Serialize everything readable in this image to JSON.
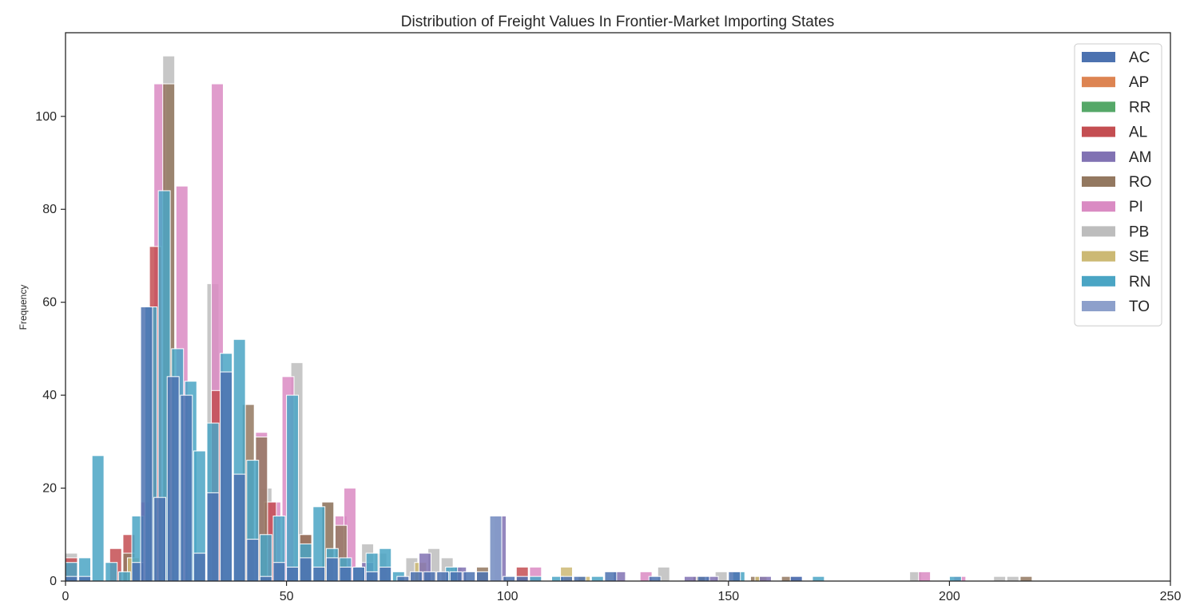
{
  "chart_data": {
    "type": "bar",
    "title": "Distribution of Freight Values In Frontier-Market Importing States",
    "xlabel": "",
    "ylabel": "Frequency",
    "xlim": [
      0,
      250
    ],
    "ylim": [
      0,
      118
    ],
    "x_ticks": [
      0,
      50,
      100,
      150,
      200,
      250
    ],
    "y_ticks": [
      0,
      20,
      40,
      60,
      80,
      100
    ],
    "grid": false,
    "legend_position": "top-right",
    "histogram_bin_width": 2.7,
    "series": [
      {
        "name": "PB",
        "color": "#bdbdbd",
        "bars": [
          [
            0,
            6
          ],
          [
            22,
            113
          ],
          [
            32,
            64
          ],
          [
            44,
            20
          ],
          [
            51,
            47
          ],
          [
            58,
            17
          ],
          [
            67,
            8
          ],
          [
            70,
            6
          ],
          [
            77,
            5
          ],
          [
            82,
            7
          ],
          [
            85,
            5
          ],
          [
            87,
            3
          ],
          [
            134,
            3
          ],
          [
            147,
            2
          ],
          [
            191,
            2
          ],
          [
            210,
            1
          ],
          [
            213,
            1
          ]
        ]
      },
      {
        "name": "PI",
        "color": "#da8bc3",
        "bars": [
          [
            17,
            17
          ],
          [
            20,
            107
          ],
          [
            25,
            85
          ],
          [
            33,
            107
          ],
          [
            43,
            32
          ],
          [
            46,
            17
          ],
          [
            49,
            44
          ],
          [
            61,
            14
          ],
          [
            63,
            20
          ],
          [
            105,
            3
          ],
          [
            130,
            2
          ],
          [
            193,
            2
          ],
          [
            201,
            1
          ]
        ]
      },
      {
        "name": "AL",
        "color": "#c44e52",
        "bars": [
          [
            0,
            5
          ],
          [
            10,
            7
          ],
          [
            13,
            10
          ],
          [
            19,
            72
          ],
          [
            33,
            41
          ],
          [
            45,
            17
          ],
          [
            53,
            10
          ],
          [
            102,
            3
          ]
        ]
      },
      {
        "name": "RO",
        "color": "#937860",
        "bars": [
          [
            13,
            6
          ],
          [
            22,
            107
          ],
          [
            40,
            38
          ],
          [
            43,
            31
          ],
          [
            53,
            10
          ],
          [
            58,
            17
          ],
          [
            61,
            12
          ],
          [
            93,
            3
          ],
          [
            142,
            1
          ],
          [
            155,
            1
          ],
          [
            162,
            1
          ],
          [
            216,
            1
          ]
        ]
      },
      {
        "name": "SE",
        "color": "#ccb974",
        "bars": [
          [
            14,
            5
          ],
          [
            79,
            4
          ],
          [
            112,
            3
          ],
          [
            116,
            1
          ],
          [
            156,
            1
          ]
        ]
      },
      {
        "name": "AM",
        "color": "#8172b3",
        "bars": [
          [
            62,
            3
          ],
          [
            67,
            4
          ],
          [
            80,
            6
          ],
          [
            88,
            3
          ],
          [
            97,
            14
          ],
          [
            124,
            2
          ],
          [
            140,
            1
          ],
          [
            145,
            1
          ],
          [
            157,
            1
          ],
          [
            164,
            1
          ]
        ]
      },
      {
        "name": "RN",
        "color": "#4aa5c4",
        "bars": [
          [
            0,
            4
          ],
          [
            3,
            5
          ],
          [
            6,
            27
          ],
          [
            9,
            4
          ],
          [
            12,
            2
          ],
          [
            15,
            14
          ],
          [
            18,
            59
          ],
          [
            21,
            84
          ],
          [
            24,
            50
          ],
          [
            27,
            43
          ],
          [
            29,
            28
          ],
          [
            32,
            34
          ],
          [
            35,
            49
          ],
          [
            38,
            52
          ],
          [
            41,
            26
          ],
          [
            44,
            10
          ],
          [
            47,
            14
          ],
          [
            50,
            40
          ],
          [
            53,
            8
          ],
          [
            56,
            16
          ],
          [
            59,
            7
          ],
          [
            62,
            5
          ],
          [
            65,
            3
          ],
          [
            68,
            6
          ],
          [
            71,
            7
          ],
          [
            74,
            2
          ],
          [
            86,
            3
          ],
          [
            105,
            1
          ],
          [
            110,
            1
          ],
          [
            119,
            1
          ],
          [
            151,
            2
          ],
          [
            169,
            1
          ],
          [
            200,
            1
          ]
        ]
      },
      {
        "name": "AC",
        "color": "#4c72b0",
        "bars": [
          [
            0,
            1
          ],
          [
            3,
            1
          ],
          [
            15,
            4
          ],
          [
            17,
            59
          ],
          [
            20,
            18
          ],
          [
            23,
            44
          ],
          [
            26,
            40
          ],
          [
            29,
            6
          ],
          [
            32,
            19
          ],
          [
            35,
            45
          ],
          [
            38,
            23
          ],
          [
            41,
            9
          ],
          [
            44,
            1
          ],
          [
            47,
            4
          ],
          [
            50,
            3
          ],
          [
            53,
            5
          ],
          [
            56,
            3
          ],
          [
            59,
            5
          ],
          [
            62,
            3
          ],
          [
            65,
            3
          ],
          [
            68,
            2
          ],
          [
            71,
            3
          ],
          [
            75,
            1
          ],
          [
            78,
            2
          ],
          [
            81,
            2
          ],
          [
            84,
            2
          ],
          [
            87,
            2
          ],
          [
            90,
            2
          ],
          [
            93,
            2
          ],
          [
            96,
            14
          ],
          [
            99,
            1
          ],
          [
            102,
            1
          ],
          [
            112,
            1
          ],
          [
            115,
            1
          ],
          [
            122,
            2
          ],
          [
            132,
            1
          ],
          [
            143,
            1
          ],
          [
            150,
            2
          ],
          [
            164,
            1
          ]
        ]
      },
      {
        "name": "AP",
        "color": "#dd8452",
        "bars": []
      },
      {
        "name": "RR",
        "color": "#55a868",
        "bars": []
      },
      {
        "name": "TO",
        "color": "#8da0cb",
        "bars": [
          [
            96,
            14
          ]
        ]
      }
    ],
    "legend": [
      {
        "name": "AC",
        "color": "#4c72b0"
      },
      {
        "name": "AP",
        "color": "#dd8452"
      },
      {
        "name": "RR",
        "color": "#55a868"
      },
      {
        "name": "AL",
        "color": "#c44e52"
      },
      {
        "name": "AM",
        "color": "#8172b3"
      },
      {
        "name": "RO",
        "color": "#937860"
      },
      {
        "name": "PI",
        "color": "#da8bc3"
      },
      {
        "name": "PB",
        "color": "#bdbdbd"
      },
      {
        "name": "SE",
        "color": "#ccb974"
      },
      {
        "name": "RN",
        "color": "#4aa5c4"
      },
      {
        "name": "TO",
        "color": "#8da0cb"
      }
    ]
  }
}
